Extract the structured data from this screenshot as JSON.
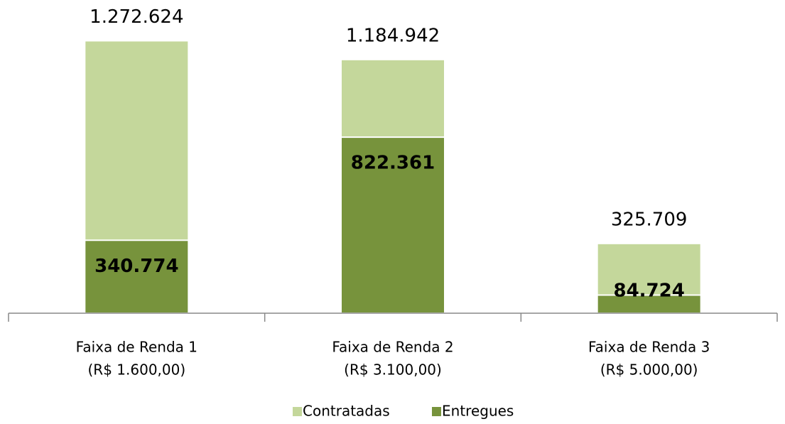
{
  "chart_data": {
    "type": "bar",
    "categories": [
      [
        "Faixa de Renda 1",
        "(R$ 1.600,00)"
      ],
      [
        "Faixa de Renda 2",
        "(R$ 3.100,00)"
      ],
      [
        "Faixa de Renda 3",
        "(R$ 5.000,00)"
      ]
    ],
    "series": [
      {
        "name": "Contratadas",
        "color": "#c4d79b",
        "values": [
          1272624,
          1184942,
          325709
        ],
        "value_labels": [
          "1.272.624",
          "1.184.942",
          "325.709"
        ]
      },
      {
        "name": "Entregues",
        "color": "#77933c",
        "values": [
          340774,
          822361,
          84724
        ],
        "value_labels": [
          "340.774",
          "822.361",
          "84.724"
        ]
      }
    ],
    "ylim": [
      0,
      1400000
    ],
    "legend": "bottom"
  }
}
